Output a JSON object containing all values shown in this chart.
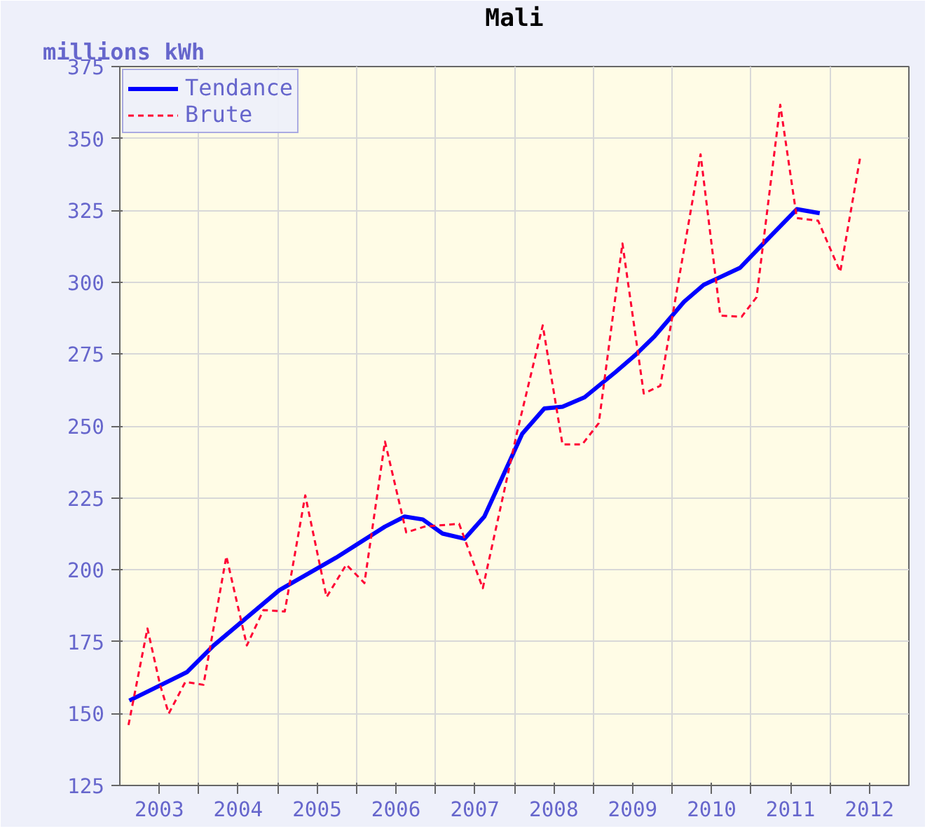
{
  "chart_data": {
    "type": "line",
    "title": "Mali",
    "ylabel": "millions kWh",
    "xlim": [
      2003,
      2013
    ],
    "xticks": [
      {
        "value": 2003.5,
        "label": "2003"
      },
      {
        "value": 2004,
        "label": null
      },
      {
        "value": 2004.5,
        "label": "2004"
      },
      {
        "value": 2005,
        "label": null
      },
      {
        "value": 2005.5,
        "label": "2005"
      },
      {
        "value": 2006,
        "label": null
      },
      {
        "value": 2006.5,
        "label": "2006"
      },
      {
        "value": 2007,
        "label": null
      },
      {
        "value": 2007.5,
        "label": "2007"
      },
      {
        "value": 2008,
        "label": null
      },
      {
        "value": 2008.5,
        "label": "2008"
      },
      {
        "value": 2009,
        "label": null
      },
      {
        "value": 2009.5,
        "label": "2009"
      },
      {
        "value": 2010,
        "label": null
      },
      {
        "value": 2010.5,
        "label": "2010"
      },
      {
        "value": 2011,
        "label": null
      },
      {
        "value": 2011.5,
        "label": "2011"
      },
      {
        "value": 2012,
        "label": null
      },
      {
        "value": 2012.5,
        "label": "2012"
      }
    ],
    "ylim": [
      125,
      375
    ],
    "yticks": [
      125,
      150,
      175,
      200,
      225,
      250,
      275,
      300,
      325,
      350,
      375
    ],
    "grid": true,
    "legend": "top left",
    "series": [
      {
        "name": "Tendance",
        "color": "#0000ff",
        "line_style": "solid",
        "x": [
          2003.12,
          2003.85,
          2004.19,
          2005.02,
          2005.74,
          2006.36,
          2006.61,
          2006.84,
          2007.09,
          2007.37,
          2007.62,
          2008.1,
          2008.38,
          2008.61,
          2008.89,
          2009.28,
          2009.53,
          2009.78,
          2010.15,
          2010.4,
          2010.86,
          2011.19,
          2011.58,
          2011.87
        ],
        "values": [
          154.5,
          164.4,
          173.7,
          192.9,
          204.2,
          215,
          218.5,
          217.5,
          212.6,
          210.8,
          218.5,
          247.3,
          256.1,
          256.7,
          260,
          268.7,
          274.6,
          281.3,
          293.2,
          299.1,
          305,
          314.4,
          325.4,
          324
        ]
      },
      {
        "name": "Brute",
        "color": "#ff0033",
        "line_style": "dashed",
        "x": [
          2003.11,
          2003.35,
          2003.51,
          2003.62,
          2003.83,
          2004.06,
          2004.35,
          2004.61,
          2004.82,
          2005.09,
          2005.35,
          2005.62,
          2005.87,
          2006.1,
          2006.36,
          2006.63,
          2006.86,
          2007.3,
          2007.6,
          2008.04,
          2008.36,
          2008.61,
          2008.86,
          2009.07,
          2009.37,
          2009.64,
          2009.85,
          2010.36,
          2010.61,
          2010.88,
          2011.07,
          2011.37,
          2011.58,
          2011.85,
          2012.13,
          2012.38
        ],
        "values": [
          146,
          179.6,
          160,
          150,
          161,
          160,
          204.7,
          173.7,
          186,
          185.5,
          225.9,
          190.5,
          201.8,
          195.4,
          244.6,
          213,
          215,
          216,
          193.6,
          248.5,
          285,
          243.6,
          243.6,
          251,
          313.5,
          261.3,
          264,
          344.5,
          288.4,
          288,
          294.8,
          361.7,
          322.3,
          321.4,
          303.6,
          343
        ]
      }
    ]
  }
}
